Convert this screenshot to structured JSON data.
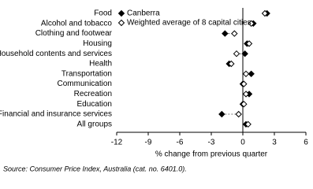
{
  "chart_data": {
    "type": "dot",
    "categories": [
      "Food",
      "Alcohol and tobacco",
      "Clothing and footwear",
      "Housing",
      "Household contents and services",
      "Health",
      "Transportation",
      "Communication",
      "Recreation",
      "Education",
      "Financial and insurance services",
      "All groups"
    ],
    "series": [
      {
        "name": "Canberra",
        "color": "#000000",
        "values": [
          2.3,
          1.0,
          -1.7,
          0.4,
          0.2,
          -1.3,
          0.8,
          0.0,
          0.6,
          0.0,
          -2.0,
          0.3
        ]
      },
      {
        "name": "Weighted average of 8 capital cities",
        "color": "#ffffff",
        "values": [
          2.1,
          0.8,
          -0.8,
          0.6,
          -0.6,
          -1.1,
          0.3,
          0.1,
          0.3,
          0.1,
          -0.4,
          0.5
        ]
      }
    ],
    "xlim": [
      -12,
      6
    ],
    "xticks": [
      -12,
      -9,
      -6,
      -3,
      0,
      3,
      6
    ],
    "xlabel": "% change from previous quarter",
    "source": "Source: Consumer Price Index, Australia  (cat. no. 6401.0)."
  }
}
